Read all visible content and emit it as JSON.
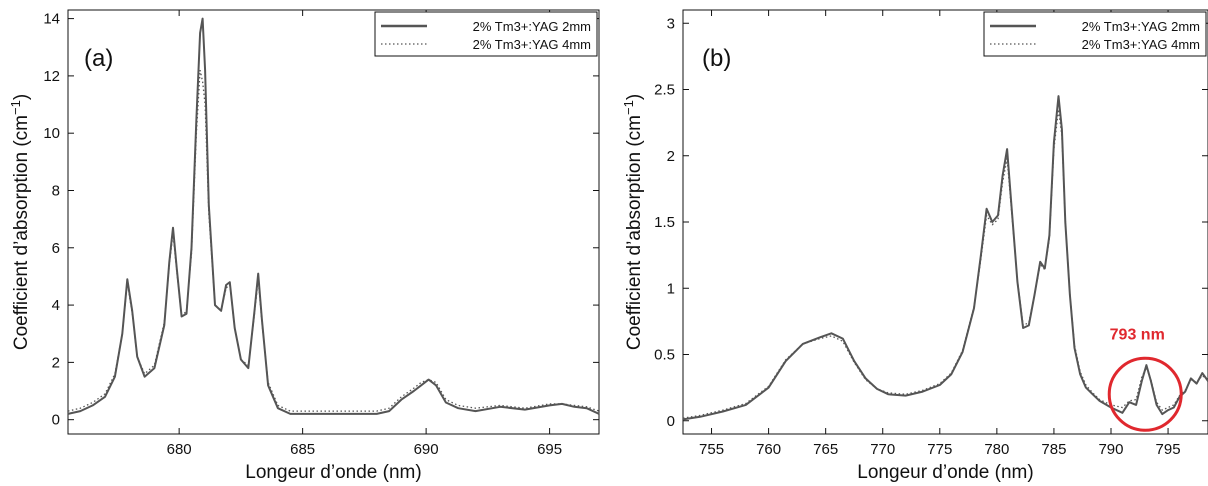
{
  "colors": {
    "series_line": "#555555",
    "annotation": "#e0282e"
  },
  "chart_data": [
    {
      "type": "line",
      "panel_label": "(a)",
      "xlabel": "Longeur d’onde (nm)",
      "ylabel": "Coefficient d’absorption (cm",
      "ylabel_unit_exp": "−1",
      "ylabel_close": ")",
      "xlim": [
        675.5,
        697
      ],
      "ylim": [
        -0.5,
        14.3
      ],
      "xticks": [
        680,
        685,
        690,
        695
      ],
      "yticks": [
        0,
        2,
        4,
        6,
        8,
        10,
        12,
        14
      ],
      "grid": false,
      "legend_position": "top-right",
      "series": [
        {
          "name": "2% Tm3+:YAG 2mm",
          "style": "solid",
          "x": [
            675.5,
            676,
            676.5,
            677,
            677.4,
            677.7,
            677.9,
            678.1,
            678.3,
            678.6,
            679,
            679.4,
            679.6,
            679.75,
            679.9,
            680.1,
            680.3,
            680.5,
            680.7,
            680.85,
            680.95,
            681.05,
            681.2,
            681.45,
            681.7,
            681.9,
            682.05,
            682.25,
            682.5,
            682.8,
            683.05,
            683.2,
            683.35,
            683.6,
            684,
            684.5,
            685,
            686,
            687,
            688,
            688.5,
            689,
            689.5,
            689.8,
            690.1,
            690.4,
            690.8,
            691.3,
            692,
            693,
            694,
            695,
            695.5,
            696,
            696.5,
            697
          ],
          "y": [
            0.2,
            0.3,
            0.5,
            0.8,
            1.5,
            3,
            4.9,
            3.8,
            2.2,
            1.5,
            1.8,
            3.3,
            5.5,
            6.7,
            5.3,
            3.6,
            3.7,
            6,
            10.5,
            13.5,
            14,
            12.2,
            7.5,
            4,
            3.8,
            4.7,
            4.8,
            3.2,
            2.1,
            1.8,
            3.8,
            5.1,
            3.5,
            1.2,
            0.4,
            0.2,
            0.2,
            0.2,
            0.2,
            0.2,
            0.3,
            0.7,
            1,
            1.2,
            1.4,
            1.2,
            0.6,
            0.4,
            0.3,
            0.45,
            0.35,
            0.5,
            0.55,
            0.45,
            0.4,
            0.2
          ]
        },
        {
          "name": "2% Tm3+:YAG 4mm",
          "style": "dotted",
          "x": [
            675.5,
            676,
            676.5,
            677,
            677.4,
            677.7,
            677.9,
            678.1,
            678.3,
            678.6,
            679,
            679.4,
            679.6,
            679.75,
            679.9,
            680.1,
            680.3,
            680.5,
            680.7,
            680.85,
            680.95,
            681.05,
            681.2,
            681.45,
            681.7,
            681.9,
            682.05,
            682.25,
            682.5,
            682.8,
            683.05,
            683.2,
            683.35,
            683.6,
            684,
            684.5,
            685,
            686,
            687,
            688,
            688.5,
            689,
            689.5,
            689.8,
            690.1,
            690.4,
            690.8,
            691.3,
            692,
            693,
            694,
            695,
            695.5,
            696,
            696.5,
            697
          ],
          "y": [
            0.3,
            0.4,
            0.6,
            0.9,
            1.6,
            3,
            4.8,
            3.7,
            2.2,
            1.6,
            1.9,
            3.4,
            5.4,
            6.5,
            5.2,
            3.6,
            3.8,
            5.8,
            10,
            12.2,
            11.8,
            11,
            7.2,
            4,
            3.8,
            4.6,
            4.7,
            3.2,
            2.1,
            1.9,
            3.7,
            4.9,
            3.4,
            1.3,
            0.5,
            0.3,
            0.3,
            0.3,
            0.3,
            0.3,
            0.4,
            0.8,
            1.1,
            1.3,
            1.4,
            1.3,
            0.7,
            0.5,
            0.4,
            0.5,
            0.4,
            0.55,
            0.55,
            0.5,
            0.45,
            0.3
          ]
        }
      ]
    },
    {
      "type": "line",
      "panel_label": "(b)",
      "xlabel": "Longeur d’onde (nm)",
      "ylabel": "Coefficient d’absorption (cm",
      "ylabel_unit_exp": "−1",
      "ylabel_close": ")",
      "xlim": [
        752.5,
        798.5
      ],
      "ylim": [
        -0.1,
        3.1
      ],
      "xticks": [
        755,
        760,
        765,
        770,
        775,
        780,
        785,
        790,
        795
      ],
      "yticks": [
        0,
        0.5,
        1,
        1.5,
        2,
        2.5,
        3
      ],
      "grid": false,
      "legend_position": "top-right",
      "annotation": {
        "text": "793 nm",
        "x": 793
      },
      "series": [
        {
          "name": "2% Tm3+:YAG 2mm",
          "style": "solid",
          "x": [
            752.5,
            754,
            756,
            758,
            760,
            761.5,
            763,
            764.5,
            765.5,
            766.5,
            767.5,
            768.5,
            769.5,
            770.5,
            772,
            773.5,
            775,
            776,
            777,
            778,
            778.6,
            779.1,
            779.6,
            780.1,
            780.5,
            780.9,
            781.3,
            781.8,
            782.3,
            782.8,
            783.3,
            783.8,
            784.2,
            784.6,
            785,
            785.4,
            785.7,
            786,
            786.4,
            786.8,
            787.3,
            787.8,
            788.4,
            789,
            790,
            791,
            791.6,
            792.2,
            792.7,
            793.1,
            793.5,
            794,
            794.5,
            795,
            795.5,
            796,
            796.5,
            797,
            797.5,
            798,
            798.5
          ],
          "y": [
            0.01,
            0.03,
            0.07,
            0.12,
            0.25,
            0.45,
            0.58,
            0.63,
            0.66,
            0.62,
            0.45,
            0.32,
            0.24,
            0.2,
            0.19,
            0.22,
            0.27,
            0.35,
            0.52,
            0.85,
            1.25,
            1.6,
            1.5,
            1.55,
            1.85,
            2.05,
            1.6,
            1.05,
            0.7,
            0.72,
            0.95,
            1.2,
            1.15,
            1.4,
            2.1,
            2.45,
            2.2,
            1.5,
            0.95,
            0.55,
            0.35,
            0.25,
            0.2,
            0.15,
            0.1,
            0.06,
            0.14,
            0.12,
            0.3,
            0.42,
            0.3,
            0.12,
            0.05,
            0.08,
            0.1,
            0.18,
            0.22,
            0.32,
            0.28,
            0.36,
            0.3
          ]
        },
        {
          "name": "2% Tm3+:YAG 4mm",
          "style": "dotted",
          "x": [
            752.5,
            754,
            756,
            758,
            760,
            761.5,
            763,
            764.5,
            765.5,
            766.5,
            767.5,
            768.5,
            769.5,
            770.5,
            772,
            773.5,
            775,
            776,
            777,
            778,
            778.6,
            779.1,
            779.6,
            780.1,
            780.5,
            780.9,
            781.3,
            781.8,
            782.3,
            782.8,
            783.3,
            783.8,
            784.2,
            784.6,
            785,
            785.4,
            785.7,
            786,
            786.4,
            786.8,
            787.3,
            787.8,
            788.4,
            789,
            790,
            791,
            791.6,
            792.2,
            792.7,
            793.1,
            793.5,
            794,
            794.5,
            795,
            795.5,
            796,
            796.5,
            797,
            797.5,
            798,
            798.5
          ],
          "y": [
            0.02,
            0.04,
            0.08,
            0.13,
            0.26,
            0.46,
            0.58,
            0.62,
            0.64,
            0.6,
            0.44,
            0.31,
            0.24,
            0.21,
            0.2,
            0.23,
            0.28,
            0.36,
            0.53,
            0.86,
            1.22,
            1.55,
            1.48,
            1.52,
            1.8,
            1.98,
            1.57,
            1.06,
            0.72,
            0.74,
            0.95,
            1.18,
            1.14,
            1.38,
            2.05,
            2.35,
            2.15,
            1.5,
            0.96,
            0.57,
            0.37,
            0.27,
            0.21,
            0.16,
            0.12,
            0.1,
            0.15,
            0.16,
            0.33,
            0.4,
            0.31,
            0.14,
            0.08,
            0.1,
            0.12,
            0.19,
            0.23,
            0.31,
            0.29,
            0.34,
            0.31
          ]
        }
      ]
    }
  ]
}
